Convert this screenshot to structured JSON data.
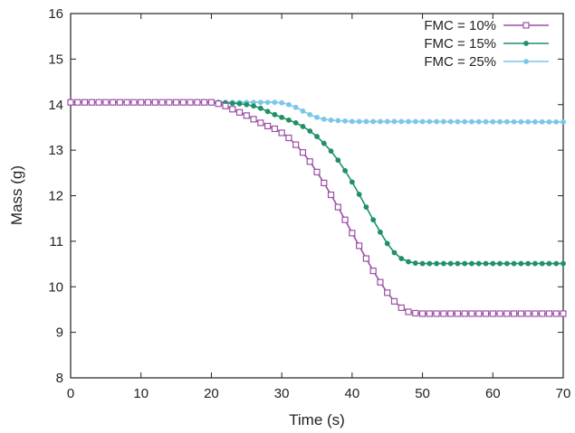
{
  "chart_data": {
    "type": "line",
    "xlabel": "Time (s)",
    "ylabel": "Mass (g)",
    "xlim": [
      0,
      70
    ],
    "ylim": [
      8,
      16
    ],
    "xticks": [
      0,
      10,
      20,
      30,
      40,
      50,
      60,
      70
    ],
    "yticks": [
      8,
      9,
      10,
      11,
      12,
      13,
      14,
      15,
      16
    ],
    "grid": false,
    "legend_position": "top-right",
    "series": [
      {
        "name": "FMC = 10%",
        "color": "#9b4fa5",
        "marker": "open-square",
        "points": [
          [
            0,
            14.05
          ],
          [
            20,
            14.05
          ],
          [
            21,
            14.02
          ],
          [
            22,
            13.97
          ],
          [
            23,
            13.9
          ],
          [
            24,
            13.83
          ],
          [
            25,
            13.76
          ],
          [
            26,
            13.68
          ],
          [
            27,
            13.6
          ],
          [
            28,
            13.53
          ],
          [
            29,
            13.47
          ],
          [
            30,
            13.38
          ],
          [
            31,
            13.27
          ],
          [
            32,
            13.12
          ],
          [
            33,
            12.95
          ],
          [
            34,
            12.75
          ],
          [
            35,
            12.52
          ],
          [
            36,
            12.28
          ],
          [
            37,
            12.02
          ],
          [
            38,
            11.75
          ],
          [
            39,
            11.47
          ],
          [
            40,
            11.18
          ],
          [
            41,
            10.9
          ],
          [
            42,
            10.62
          ],
          [
            43,
            10.35
          ],
          [
            44,
            10.1
          ],
          [
            45,
            9.87
          ],
          [
            46,
            9.68
          ],
          [
            47,
            9.54
          ],
          [
            48,
            9.45
          ],
          [
            49,
            9.42
          ],
          [
            50,
            9.41
          ],
          [
            70,
            9.41
          ]
        ]
      },
      {
        "name": "FMC = 15%",
        "color": "#1e9165",
        "marker": "filled-circle",
        "points": [
          [
            0,
            14.05
          ],
          [
            21,
            14.05
          ],
          [
            22,
            14.04
          ],
          [
            23,
            14.03
          ],
          [
            24,
            14.02
          ],
          [
            25,
            14.0
          ],
          [
            26,
            13.97
          ],
          [
            27,
            13.92
          ],
          [
            28,
            13.85
          ],
          [
            29,
            13.78
          ],
          [
            30,
            13.72
          ],
          [
            31,
            13.66
          ],
          [
            32,
            13.6
          ],
          [
            33,
            13.52
          ],
          [
            34,
            13.42
          ],
          [
            35,
            13.3
          ],
          [
            36,
            13.15
          ],
          [
            37,
            12.98
          ],
          [
            38,
            12.78
          ],
          [
            39,
            12.55
          ],
          [
            40,
            12.3
          ],
          [
            41,
            12.03
          ],
          [
            42,
            11.75
          ],
          [
            43,
            11.47
          ],
          [
            44,
            11.2
          ],
          [
            45,
            10.95
          ],
          [
            46,
            10.75
          ],
          [
            47,
            10.62
          ],
          [
            48,
            10.55
          ],
          [
            49,
            10.52
          ],
          [
            50,
            10.51
          ],
          [
            70,
            10.51
          ]
        ]
      },
      {
        "name": "FMC = 25%",
        "color": "#7cc6ea",
        "marker": "filled-circle",
        "points": [
          [
            0,
            14.05
          ],
          [
            29,
            14.05
          ],
          [
            30,
            14.04
          ],
          [
            31,
            14.0
          ],
          [
            32,
            13.94
          ],
          [
            33,
            13.86
          ],
          [
            34,
            13.78
          ],
          [
            35,
            13.72
          ],
          [
            36,
            13.68
          ],
          [
            37,
            13.66
          ],
          [
            38,
            13.65
          ],
          [
            39,
            13.64
          ],
          [
            40,
            13.63
          ],
          [
            45,
            13.63
          ],
          [
            70,
            13.62
          ]
        ]
      }
    ]
  }
}
